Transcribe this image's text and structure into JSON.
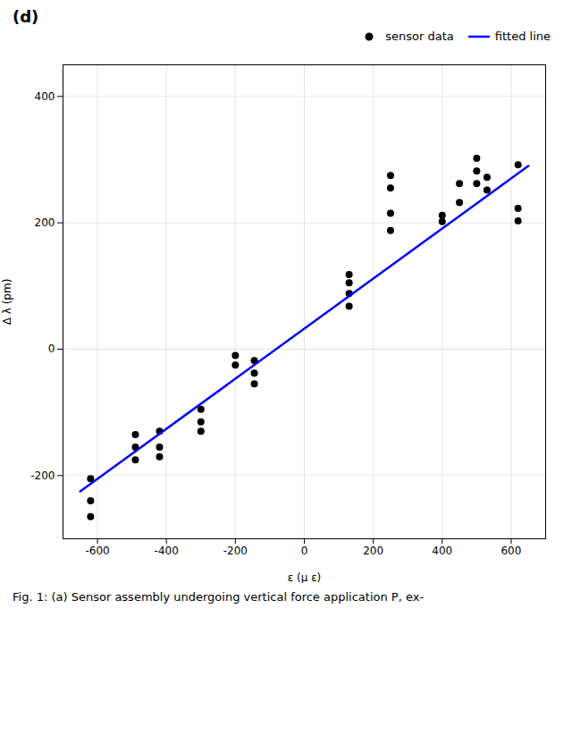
{
  "chart_data": {
    "type": "scatter",
    "title": "(d)",
    "caption": "Fig. 1: (a) Sensor assembly undergoing vertical force application P, ex-",
    "xlabel": "ε (μ ε)",
    "ylabel": "Δ λ (pm)",
    "xlim": [
      -700,
      700
    ],
    "ylim": [
      -300,
      450
    ],
    "xticks": [
      -600,
      -400,
      -200,
      0,
      200,
      400,
      600
    ],
    "yticks": [
      -200,
      0,
      200,
      400
    ],
    "grid": true,
    "legend": "right",
    "series": [
      {
        "name": "sensor data",
        "type": "scatter",
        "marker": "o",
        "color": "black",
        "x": [
          -620,
          -620,
          -620,
          -490,
          -490,
          -490,
          -420,
          -420,
          -420,
          -300,
          -300,
          -300,
          -200,
          -200,
          -145,
          -145,
          -145,
          130,
          130,
          130,
          130,
          250,
          250,
          250,
          250,
          400,
          400,
          450,
          450,
          500,
          500,
          500,
          530,
          530,
          620,
          620,
          620
        ],
        "values": [
          -240,
          -205,
          -265,
          -155,
          -135,
          -175,
          -155,
          -130,
          -170,
          -115,
          -95,
          -130,
          -25,
          -10,
          -55,
          -38,
          -18,
          88,
          105,
          118,
          68,
          215,
          255,
          275,
          188,
          202,
          212,
          232,
          262,
          262,
          282,
          302,
          252,
          272,
          203,
          223,
          292
        ]
      },
      {
        "name": "fitted line",
        "type": "line",
        "line_style": "solid",
        "color": "blue",
        "x": [
          -650,
          650
        ],
        "values": [
          -225,
          290
        ]
      }
    ]
  }
}
